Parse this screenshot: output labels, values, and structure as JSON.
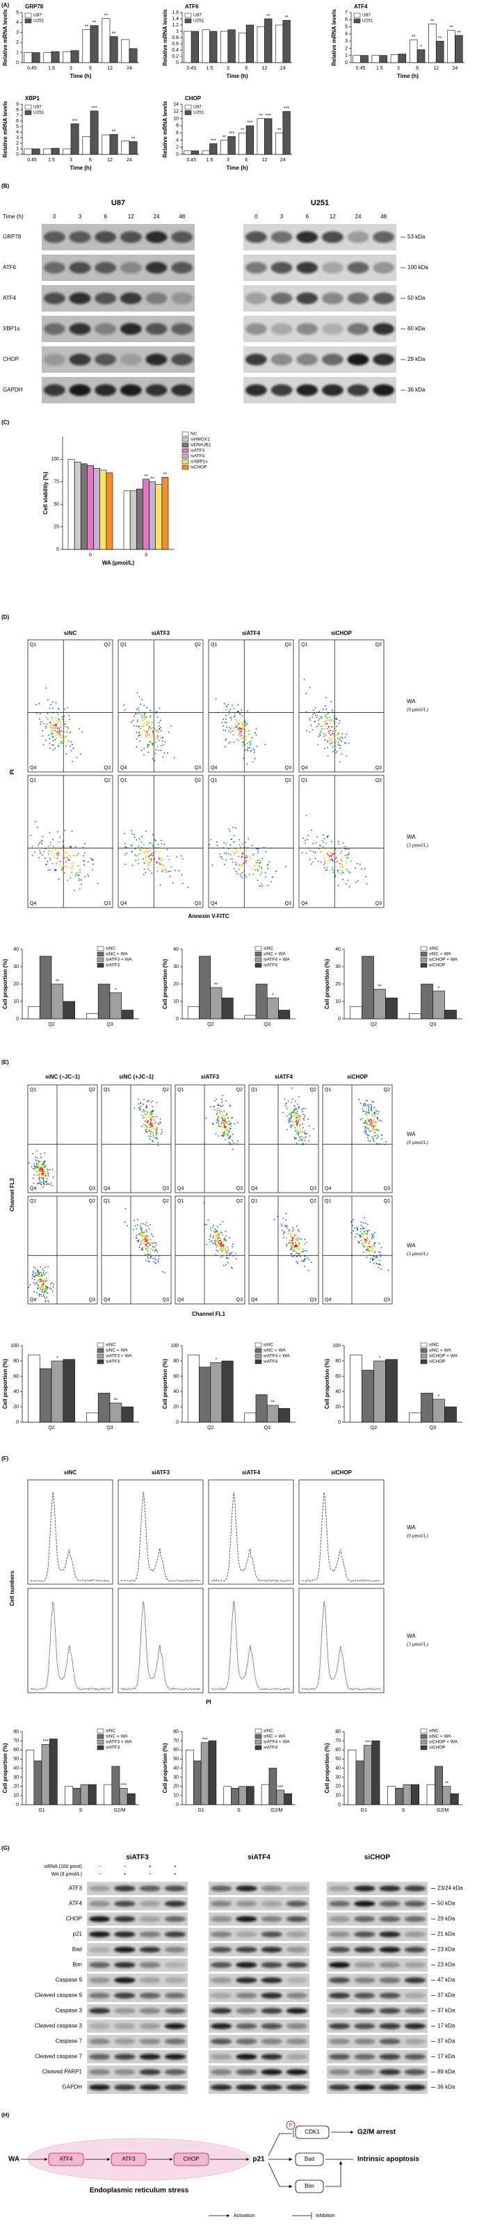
{
  "figure": {
    "panel_labels": [
      "(A)",
      "(B)",
      "(C)",
      "(D)",
      "(E)",
      "(F)",
      "(G)",
      "(H)"
    ],
    "western_B": {
      "time_label": "Time (h)",
      "cell_lines": [
        {
          "name": "U87",
          "times": [
            "0",
            "3",
            "6",
            "12",
            "24",
            "48"
          ]
        },
        {
          "name": "U251",
          "times": [
            "0",
            "3",
            "6",
            "12",
            "24",
            "48"
          ]
        }
      ],
      "proteins": [
        "GRP78",
        "ATF6",
        "ATF4",
        "XBP1s",
        "CHOP",
        "GAPDH"
      ],
      "sizes": [
        "53 kDa",
        "100 kDa",
        "50 kDa",
        "60 kDa",
        "29 kDa",
        "36 kDa"
      ]
    },
    "flow_D": {
      "columns": [
        "siNC",
        "siATF3",
        "siATF4",
        "siCHOP"
      ],
      "rows": [
        {
          "label": "WA",
          "dose": "(0 μmol/L)"
        },
        {
          "label": "WA",
          "dose": "(3 μmol/L)"
        }
      ],
      "ylabel": "PI",
      "xlabel": "Annexin V-FITC",
      "quadrants": [
        "Q1",
        "Q2",
        "Q3",
        "Q4"
      ]
    },
    "flow_E": {
      "columns": [
        "siNC (−JC−1)",
        "siNC (+JC−1)",
        "siATF3",
        "siATF4",
        "siCHOP"
      ],
      "rows": [
        {
          "label": "WA",
          "dose": "(0 μmol/L)"
        },
        {
          "label": "WA",
          "dose": "(3 μmol/L)"
        }
      ],
      "ylabel": "Channel FL3",
      "xlabel": "Channel FL1",
      "quadrants": [
        "Q1",
        "Q2",
        "Q3",
        "Q4"
      ]
    },
    "hist_F": {
      "columns": [
        "siNC",
        "siATF3",
        "siATF4",
        "siCHOP"
      ],
      "rows": [
        {
          "label": "WA",
          "dose": "(0 μmol/L)"
        },
        {
          "label": "WA",
          "dose": "(3 μmol/L)"
        }
      ],
      "ylabel": "Cell numbers",
      "xlabel": "PI"
    },
    "western_G": {
      "groups": [
        "siATF3",
        "siATF4",
        "siCHOP"
      ],
      "conditions": [
        {
          "label": "siRNA (100 pmol)",
          "signs": [
            "−",
            "−",
            "+",
            "+"
          ]
        },
        {
          "label": "WA (3 μmol/L)",
          "signs": [
            "−",
            "+",
            "−",
            "+"
          ]
        }
      ],
      "proteins": [
        "ATF3",
        "ATF4",
        "CHOP",
        "p21",
        "Bad",
        "Bim",
        "Caspase 9",
        "Cleaved caspase 9",
        "Caspase 3",
        "Cleaved caspase 3",
        "Caspase 7",
        "Cleaved caspase 7",
        "Cleaved PARP1",
        "GAPDH"
      ],
      "sizes": [
        "23/24 kDa",
        "50 kDa",
        "29 kDa",
        "21 kDa",
        "23 kDa",
        "23 kDa",
        "47 kDa",
        "37 kDa",
        "37 kDa",
        "17 kDa",
        "37 kDa",
        "17 kDa",
        "89 kDa",
        "36 kDa"
      ]
    },
    "diagram_H": {
      "nodes": {
        "wa": "WA",
        "atf4": "ATF4",
        "atf3": "ATF3",
        "chop": "CHOP",
        "p21": "p21",
        "p": "P",
        "cdk1": "CDK1",
        "bad": "Bad",
        "bim": "Bim"
      },
      "outcomes": [
        "G2/M arrest",
        "Intrinsic apoptosis"
      ],
      "region": "Endoplasmic reticulum stress",
      "legend": [
        "Activation",
        "inhibition"
      ]
    }
  },
  "chart_data": [
    {
      "type": "bar",
      "title": "GRP78",
      "ylabel": "Relative mRNA levels",
      "xlabel": "Time (h)",
      "categories": [
        "0.45",
        "1.5",
        "3",
        "6",
        "12",
        "24"
      ],
      "series": [
        {
          "name": "U87",
          "color": "#ffffff",
          "values": [
            1,
            1,
            1.1,
            3.3,
            4.4,
            2.3
          ],
          "significance": [
            null,
            null,
            null,
            "**",
            "**",
            null
          ]
        },
        {
          "name": "U251",
          "color": "#555555",
          "values": [
            1,
            1.1,
            1.2,
            3.7,
            2.6,
            1.4
          ],
          "significance": [
            null,
            null,
            null,
            "**",
            "**",
            null
          ]
        }
      ],
      "ylim": [
        0,
        5
      ],
      "yticks": [
        0,
        1,
        2,
        3,
        4,
        5
      ]
    },
    {
      "type": "bar",
      "title": "ATF6",
      "ylabel": "Relative mRNA levels",
      "xlabel": "Time (h)",
      "categories": [
        "0.45",
        "1.5",
        "3",
        "6",
        "12",
        "24"
      ],
      "series": [
        {
          "name": "U87",
          "color": "#ffffff",
          "values": [
            1,
            1.05,
            1,
            0.95,
            1.15,
            1.2
          ],
          "significance": [
            null,
            null,
            null,
            null,
            null,
            null
          ]
        },
        {
          "name": "U251",
          "color": "#555555",
          "values": [
            1,
            1,
            1.05,
            1.2,
            1.4,
            1.35
          ],
          "significance": [
            null,
            null,
            null,
            null,
            "**",
            "**"
          ]
        }
      ],
      "ylim": [
        0,
        1.6
      ],
      "yticks": [
        0,
        0.2,
        0.4,
        0.6,
        0.8,
        1,
        1.2,
        1.4,
        1.6
      ]
    },
    {
      "type": "bar",
      "title": "ATF4",
      "ylabel": "Relative mRNA levels",
      "xlabel": "Time (h)",
      "categories": [
        "0.45",
        "1.5",
        "3",
        "6",
        "12",
        "24"
      ],
      "series": [
        {
          "name": "U87",
          "color": "#ffffff",
          "values": [
            1,
            1,
            1.1,
            3.2,
            5.4,
            4.5
          ],
          "significance": [
            null,
            null,
            null,
            "**",
            "**",
            "**"
          ]
        },
        {
          "name": "U251",
          "color": "#555555",
          "values": [
            1,
            1,
            1.2,
            1.8,
            3,
            3.8
          ],
          "significance": [
            null,
            null,
            null,
            "*",
            "**",
            "**"
          ]
        }
      ],
      "ylim": [
        0,
        7
      ],
      "yticks": [
        0,
        1,
        2,
        3,
        4,
        5,
        6,
        7
      ]
    },
    {
      "type": "bar",
      "title": "XBP1",
      "ylabel": "Relative mRNA levels",
      "xlabel": "Time (h)",
      "categories": [
        "0.45",
        "1.5",
        "3",
        "6",
        "12",
        "24"
      ],
      "series": [
        {
          "name": "U87",
          "color": "#ffffff",
          "values": [
            1,
            1,
            1,
            3.2,
            3.5,
            2.4
          ],
          "significance": [
            null,
            null,
            null,
            null,
            null,
            null
          ]
        },
        {
          "name": "U251",
          "color": "#555555",
          "values": [
            1,
            1.1,
            5.5,
            7.8,
            3.6,
            2.3
          ],
          "significance": [
            null,
            null,
            "***",
            "***",
            "**",
            "**"
          ]
        }
      ],
      "ylim": [
        0,
        9
      ],
      "yticks": [
        0,
        1,
        2,
        3,
        4,
        5,
        6,
        7,
        8,
        9
      ]
    },
    {
      "type": "bar",
      "title": "CHOP",
      "ylabel": "Relative mRNA levels",
      "xlabel": "Time (h)",
      "categories": [
        "0.45",
        "1.5",
        "3",
        "6",
        "12",
        "24"
      ],
      "series": [
        {
          "name": "U87",
          "color": "#ffffff",
          "values": [
            1,
            1,
            4,
            6,
            10,
            6
          ],
          "significance": [
            null,
            null,
            "**",
            "**",
            "**",
            "**"
          ]
        },
        {
          "name": "U251",
          "color": "#555555",
          "values": [
            1,
            3,
            5,
            8,
            10,
            12
          ],
          "significance": [
            null,
            "***",
            "***",
            "***",
            "***",
            "***"
          ]
        }
      ],
      "ylim": [
        0,
        14
      ],
      "yticks": [
        0,
        2,
        4,
        6,
        8,
        10,
        12,
        14
      ]
    },
    {
      "type": "bar",
      "ylabel": "Cell viability (%)",
      "xlabel": "WA (μmol/L)",
      "categories": [
        "0",
        "3"
      ],
      "series": [
        {
          "name": "NC",
          "color": "#ffffff",
          "values": [
            100,
            65
          ]
        },
        {
          "name": "siHMOX1",
          "color": "#cccccc",
          "values": [
            97,
            65
          ]
        },
        {
          "name": "siDNAJB1",
          "color": "#777777",
          "values": [
            95,
            67
          ]
        },
        {
          "name": "siATF3",
          "color": "#e377c2",
          "values": [
            93,
            78
          ],
          "significance": [
            null,
            "**"
          ]
        },
        {
          "name": "siATF4",
          "color": "#c5b0d5",
          "values": [
            90,
            75
          ],
          "significance": [
            null,
            "**"
          ]
        },
        {
          "name": "siXBP1s",
          "color": "#f5e663",
          "values": [
            88,
            72
          ]
        },
        {
          "name": "siCHOP",
          "color": "#f28e2b",
          "values": [
            85,
            80
          ],
          "significance": [
            null,
            "**"
          ]
        }
      ],
      "ylim": [
        0,
        125
      ],
      "yticks": [
        0,
        25,
        50,
        75,
        100
      ]
    },
    {
      "type": "bar",
      "ylabel": "Cell proportion (%)",
      "categories": [
        "Q2",
        "Q3"
      ],
      "series": [
        {
          "name": "siNC",
          "color": "#ffffff",
          "values": [
            7,
            3
          ]
        },
        {
          "name": "siNC + WA",
          "color": "#6e6e6e",
          "values": [
            36,
            20
          ]
        },
        {
          "name": "siATF3 + WA",
          "color": "#a0a0a0",
          "values": [
            20,
            15
          ],
          "significance": [
            "**",
            "*"
          ]
        },
        {
          "name": "siATF3",
          "color": "#404040",
          "values": [
            10,
            5
          ]
        }
      ],
      "ylim": [
        0,
        40
      ],
      "yticks": [
        0,
        10,
        20,
        30,
        40
      ]
    },
    {
      "type": "bar",
      "ylabel": "Cell proportion (%)",
      "categories": [
        "Q2",
        "Q3"
      ],
      "series": [
        {
          "name": "siNC",
          "color": "#ffffff",
          "values": [
            7,
            2
          ]
        },
        {
          "name": "siNC + WA",
          "color": "#6e6e6e",
          "values": [
            36,
            20
          ]
        },
        {
          "name": "siATF4 + WA",
          "color": "#a0a0a0",
          "values": [
            18,
            12
          ],
          "significance": [
            "**",
            "*"
          ]
        },
        {
          "name": "siATF4",
          "color": "#404040",
          "values": [
            12,
            5
          ]
        }
      ],
      "ylim": [
        0,
        40
      ],
      "yticks": [
        0,
        10,
        20,
        30,
        40
      ]
    },
    {
      "type": "bar",
      "ylabel": "Cell proportion (%)",
      "categories": [
        "Q2",
        "Q3"
      ],
      "series": [
        {
          "name": "siNC",
          "color": "#ffffff",
          "values": [
            7,
            3
          ]
        },
        {
          "name": "siNC + WA",
          "color": "#6e6e6e",
          "values": [
            36,
            20
          ]
        },
        {
          "name": "siCHOP + WA",
          "color": "#a0a0a0",
          "values": [
            17,
            16
          ],
          "significance": [
            "**",
            "*"
          ]
        },
        {
          "name": "siCHOP",
          "color": "#404040",
          "values": [
            12,
            5
          ]
        }
      ],
      "ylim": [
        0,
        40
      ],
      "yticks": [
        0,
        10,
        20,
        30,
        40
      ]
    },
    {
      "type": "bar",
      "ylabel": "Cell proportion (%)",
      "categories": [
        "Q2",
        "Q3"
      ],
      "series": [
        {
          "name": "siNC",
          "color": "#ffffff",
          "values": [
            88,
            12
          ]
        },
        {
          "name": "siNC + WA",
          "color": "#6e6e6e",
          "values": [
            70,
            38
          ]
        },
        {
          "name": "siATF3 + WA",
          "color": "#a0a0a0",
          "values": [
            80,
            25
          ],
          "significance": [
            "*",
            "**"
          ]
        },
        {
          "name": "siATF3",
          "color": "#404040",
          "values": [
            82,
            20
          ]
        }
      ],
      "ylim": [
        0,
        100
      ],
      "yticks": [
        0,
        20,
        40,
        60,
        80,
        100
      ]
    },
    {
      "type": "bar",
      "ylabel": "Cell proportion (%)",
      "categories": [
        "Q2",
        "Q3"
      ],
      "series": [
        {
          "name": "siNC",
          "color": "#ffffff",
          "values": [
            88,
            12
          ]
        },
        {
          "name": "siNC + WA",
          "color": "#6e6e6e",
          "values": [
            72,
            36
          ]
        },
        {
          "name": "siATF4 + WA",
          "color": "#a0a0a0",
          "values": [
            78,
            22
          ],
          "significance": [
            "*",
            "**"
          ]
        },
        {
          "name": "siATF4",
          "color": "#404040",
          "values": [
            80,
            18
          ]
        }
      ],
      "ylim": [
        0,
        100
      ],
      "yticks": [
        0,
        20,
        40,
        60,
        80,
        100
      ]
    },
    {
      "type": "bar",
      "ylabel": "Cell proportion (%)",
      "categories": [
        "Q2",
        "Q3"
      ],
      "series": [
        {
          "name": "siNC",
          "color": "#ffffff",
          "values": [
            88,
            12
          ]
        },
        {
          "name": "siNC + WA",
          "color": "#6e6e6e",
          "values": [
            68,
            38
          ]
        },
        {
          "name": "siCHOP + WA",
          "color": "#a0a0a0",
          "values": [
            80,
            30
          ],
          "significance": [
            "*",
            "*"
          ]
        },
        {
          "name": "siCHOP",
          "color": "#404040",
          "values": [
            82,
            20
          ]
        }
      ],
      "ylim": [
        0,
        100
      ],
      "yticks": [
        0,
        20,
        40,
        60,
        80,
        100
      ]
    },
    {
      "type": "bar",
      "ylabel": "Cell proportion (%)",
      "categories": [
        "G1",
        "S",
        "G2/M"
      ],
      "series": [
        {
          "name": "siNC",
          "color": "#ffffff",
          "values": [
            60,
            20,
            22
          ]
        },
        {
          "name": "siNC + WA",
          "color": "#6e6e6e",
          "values": [
            48,
            18,
            42
          ]
        },
        {
          "name": "siATF3 + WA",
          "color": "#a0a0a0",
          "values": [
            66,
            22,
            18
          ],
          "significance": [
            "***",
            null,
            "***"
          ]
        },
        {
          "name": "siATF3",
          "color": "#404040",
          "values": [
            72,
            22,
            12
          ]
        }
      ],
      "ylim": [
        0,
        80
      ],
      "yticks": [
        0,
        10,
        20,
        30,
        40,
        50,
        60,
        70,
        80
      ]
    },
    {
      "type": "bar",
      "ylabel": "Cell proportion (%)",
      "categories": [
        "G1",
        "S",
        "G2/M"
      ],
      "series": [
        {
          "name": "siNC",
          "color": "#ffffff",
          "values": [
            60,
            20,
            22
          ]
        },
        {
          "name": "siNC + WA",
          "color": "#6e6e6e",
          "values": [
            48,
            18,
            40
          ]
        },
        {
          "name": "siATF4 + WA",
          "color": "#a0a0a0",
          "values": [
            68,
            20,
            16
          ],
          "significance": [
            "***",
            null,
            "***"
          ]
        },
        {
          "name": "siATF4",
          "color": "#404040",
          "values": [
            70,
            20,
            12
          ]
        }
      ],
      "ylim": [
        0,
        80
      ],
      "yticks": [
        0,
        10,
        20,
        30,
        40,
        50,
        60,
        70,
        80
      ]
    },
    {
      "type": "bar",
      "ylabel": "Cell proportion (%)",
      "categories": [
        "G1",
        "S",
        "G2/M"
      ],
      "series": [
        {
          "name": "siNC",
          "color": "#ffffff",
          "values": [
            60,
            20,
            22
          ]
        },
        {
          "name": "siNC + WA",
          "color": "#6e6e6e",
          "values": [
            48,
            18,
            42
          ]
        },
        {
          "name": "siCHOP + WA",
          "color": "#a0a0a0",
          "values": [
            65,
            22,
            20
          ],
          "significance": [
            "***",
            null,
            "**"
          ]
        },
        {
          "name": "siCHOP",
          "color": "#404040",
          "values": [
            70,
            22,
            12
          ]
        }
      ],
      "ylim": [
        0,
        80
      ],
      "yticks": [
        0,
        10,
        20,
        30,
        40,
        50,
        60,
        70,
        80
      ]
    }
  ]
}
